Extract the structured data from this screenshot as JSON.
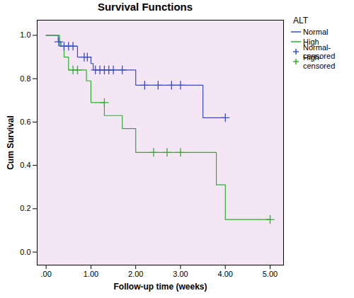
{
  "chart_data": {
    "type": "line",
    "title": "Survival Functions",
    "x_label": "Follow-up time (weeks)",
    "y_label": "Cum Survival",
    "legend_title": "ALT",
    "legend": "right",
    "xlim": [
      -0.2,
      5.3
    ],
    "ylim": [
      -0.06,
      1.07
    ],
    "xticks": [
      {
        "value": 0,
        "label": ".00"
      },
      {
        "value": 1,
        "label": "1.00"
      },
      {
        "value": 2,
        "label": "2.00"
      },
      {
        "value": 3,
        "label": "3.00"
      },
      {
        "value": 4,
        "label": "4.00"
      },
      {
        "value": 5,
        "label": "5.00"
      }
    ],
    "yticks": [
      {
        "value": 0,
        "label": "0.0"
      },
      {
        "value": 0.2,
        "label": "0.2"
      },
      {
        "value": 0.4,
        "label": "0.4"
      },
      {
        "value": 0.6,
        "label": "0.6"
      },
      {
        "value": 0.8,
        "label": "0.8"
      },
      {
        "value": 1,
        "label": "1.0"
      }
    ],
    "series": [
      {
        "name": "Normal",
        "type": "step",
        "color": "#3b4fb8",
        "x": [
          0,
          0.27,
          0.33,
          0.7,
          1.0,
          1.05,
          2.0,
          3.5,
          4.0
        ],
        "values": [
          1.0,
          0.97,
          0.95,
          0.9,
          0.87,
          0.84,
          0.77,
          0.62,
          0.62
        ]
      },
      {
        "name": "High",
        "type": "step",
        "color": "#2fae2f",
        "x": [
          0,
          0.3,
          0.4,
          0.5,
          0.9,
          1.0,
          1.3,
          1.7,
          2.0,
          3.8,
          4.0,
          5.0
        ],
        "values": [
          1.0,
          0.95,
          0.9,
          0.84,
          0.79,
          0.69,
          0.63,
          0.57,
          0.46,
          0.31,
          0.15,
          0.15
        ]
      },
      {
        "name": "Normal-censored",
        "type": "scatter",
        "marker": "plus",
        "color": "#3b4fb8",
        "x": [
          0.28,
          0.4,
          0.5,
          0.6,
          0.85,
          0.92,
          1.1,
          1.2,
          1.3,
          1.4,
          1.5,
          1.7,
          2.2,
          2.5,
          2.8,
          3.0,
          4.0
        ],
        "values": [
          0.97,
          0.95,
          0.95,
          0.95,
          0.9,
          0.9,
          0.84,
          0.84,
          0.84,
          0.84,
          0.84,
          0.84,
          0.77,
          0.77,
          0.77,
          0.77,
          0.62
        ]
      },
      {
        "name": "High-censored",
        "type": "scatter",
        "marker": "plus",
        "color": "#2fae2f",
        "x": [
          0.6,
          0.7,
          1.3,
          2.4,
          2.7,
          3.0,
          5.0
        ],
        "values": [
          0.84,
          0.84,
          0.69,
          0.46,
          0.46,
          0.46,
          0.15
        ]
      }
    ]
  }
}
